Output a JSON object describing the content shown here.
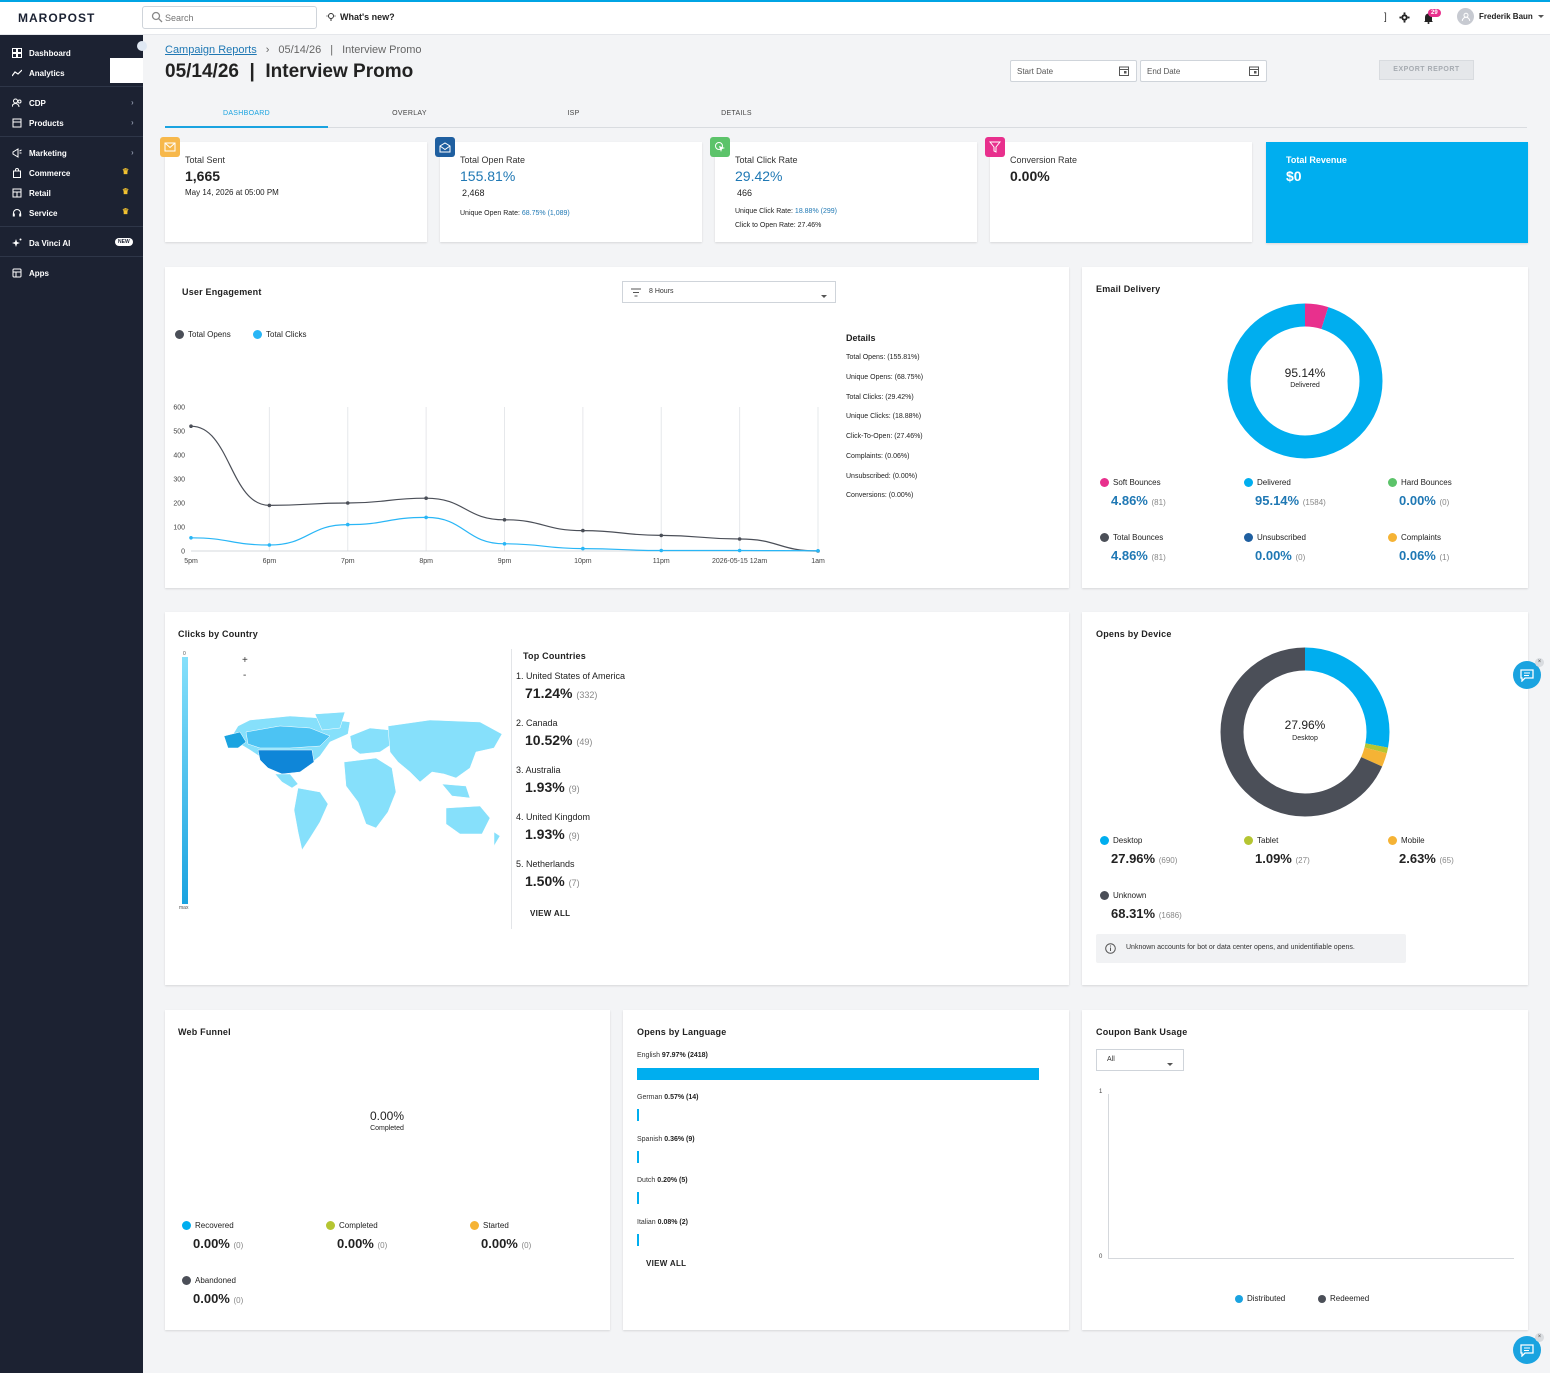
{
  "app": {
    "logo": "MAROPOST",
    "search_placeholder": "Search",
    "whats_new": "What's new?",
    "bracket": "]",
    "notif_count": "29",
    "user_name": "Frederik Baun",
    "accent": "#00a4e4"
  },
  "sidebar": {
    "items": [
      {
        "label": "Dashboard",
        "icon": "dashboard-icon"
      },
      {
        "label": "Analytics",
        "icon": "analytics-icon"
      },
      {
        "label": "CDP",
        "icon": "users-icon"
      },
      {
        "label": "Products",
        "icon": "box-icon"
      },
      {
        "label": "Marketing",
        "icon": "megaphone-icon"
      },
      {
        "label": "Commerce",
        "icon": "bag-icon"
      },
      {
        "label": "Retail",
        "icon": "store-icon"
      },
      {
        "label": "Service",
        "icon": "headset-icon"
      },
      {
        "label": "Da Vinci AI",
        "icon": "sparkle-icon"
      },
      {
        "label": "Apps",
        "icon": "apps-icon"
      }
    ],
    "new_badge": "NEW"
  },
  "breadcrumb": {
    "link": "Campaign Reports",
    "sep": "›",
    "date": "05/14/26",
    "pipe": "|",
    "name": "Interview Promo"
  },
  "page": {
    "title": "05/14/26  |  Interview Promo",
    "start_date_placeholder": "Start Date",
    "end_date_placeholder": "End Date",
    "export_label": "EXPORT REPORT"
  },
  "tabs": [
    "DASHBOARD",
    "OVERLAY",
    "ISP",
    "DETAILS"
  ],
  "stats": {
    "total_sent": {
      "label": "Total Sent",
      "value": "1,665",
      "sub": "May 14, 2026 at 05:00 PM"
    },
    "open_rate": {
      "label": "Total Open Rate",
      "value": "155.81%",
      "count": "2,468",
      "unique_label": "Unique Open Rate:",
      "unique_value": "68.75% (1,089)"
    },
    "click_rate": {
      "label": "Total Click Rate",
      "value": "29.42%",
      "count": "466",
      "unique_label": "Unique Click Rate:",
      "unique_value": "18.88% (299)",
      "cto": "Click to Open Rate: 27.46%"
    },
    "conversion": {
      "label": "Conversion Rate",
      "value": "0.00%"
    },
    "revenue": {
      "label": "Total Revenue",
      "value": "$0"
    }
  },
  "engagement": {
    "title": "User Engagement",
    "filter": "8 Hours",
    "legend_opens": "Total Opens",
    "legend_clicks": "Total Clicks",
    "details_title": "Details",
    "details": [
      "Total Opens: (155.81%)",
      "Unique Opens: (68.75%)",
      "Total Clicks: (29.42%)",
      "Unique Clicks: (18.88%)",
      "Click-To-Open: (27.46%)",
      "Complaints: (0.06%)",
      "Unsubscribed: (0.00%)",
      "Conversions: (0.00%)"
    ]
  },
  "chart_data": {
    "type": "line",
    "x": [
      "5pm",
      "6pm",
      "7pm",
      "8pm",
      "9pm",
      "10pm",
      "11pm",
      "2026-05-15 12am",
      "1am"
    ],
    "series": [
      {
        "name": "Total Opens",
        "values": [
          520,
          190,
          200,
          220,
          130,
          85,
          65,
          50,
          0
        ],
        "color": "#4b4f58"
      },
      {
        "name": "Total Clicks",
        "values": [
          55,
          25,
          110,
          140,
          30,
          10,
          2,
          2,
          1
        ],
        "color": "#29b6f6"
      }
    ],
    "yticks": [
      0,
      100,
      200,
      300,
      400,
      500,
      600
    ],
    "ylim": [
      0,
      600
    ],
    "xlabel": "",
    "ylabel": "",
    "grid": "vertical"
  },
  "delivery": {
    "title": "Email Delivery",
    "center_value": "95.14%",
    "center_label": "Delivered",
    "ring": {
      "delivered": 95.14,
      "soft_bounces": 4.86
    },
    "metrics": [
      {
        "label": "Soft Bounces",
        "value": "4.86%",
        "count": "(81)",
        "color": "#e8308d"
      },
      {
        "label": "Delivered",
        "value": "95.14%",
        "count": "(1584)",
        "color": "#00aeef"
      },
      {
        "label": "Hard Bounces",
        "value": "0.00%",
        "count": "(0)",
        "color": "#5cc36a"
      },
      {
        "label": "Total Bounces",
        "value": "4.86%",
        "count": "(81)",
        "color": "#4b4f58"
      },
      {
        "label": "Unsubscribed",
        "value": "0.00%",
        "count": "(0)",
        "color": "#1f5fa0"
      },
      {
        "label": "Complaints",
        "value": "0.06%",
        "count": "(1)",
        "color": "#f5b335"
      }
    ]
  },
  "country": {
    "title": "Clicks by Country",
    "scale_min": "0",
    "scale_max": "max",
    "zoom_in": "+",
    "zoom_out": "-",
    "top_title": "Top Countries",
    "items": [
      {
        "name": "1. United States of America",
        "value": "71.24%",
        "count": "(332)"
      },
      {
        "name": "2. Canada",
        "value": "10.52%",
        "count": "(49)"
      },
      {
        "name": "3. Australia",
        "value": "1.93%",
        "count": "(9)"
      },
      {
        "name": "4. United Kingdom",
        "value": "1.93%",
        "count": "(9)"
      },
      {
        "name": "5. Netherlands",
        "value": "1.50%",
        "count": "(7)"
      }
    ],
    "view_all": "VIEW ALL"
  },
  "device": {
    "title": "Opens by Device",
    "center_value": "27.96%",
    "center_label": "Desktop",
    "ring": {
      "desktop": 27.96,
      "tablet": 1.09,
      "mobile": 2.63,
      "unknown": 68.31
    },
    "metrics": [
      {
        "label": "Desktop",
        "value": "27.96%",
        "count": "(690)",
        "color": "#00aeef"
      },
      {
        "label": "Tablet",
        "value": "1.09%",
        "count": "(27)",
        "color": "#b5c532"
      },
      {
        "label": "Mobile",
        "value": "2.63%",
        "count": "(65)",
        "color": "#f5b335"
      },
      {
        "label": "Unknown",
        "value": "68.31%",
        "count": "(1686)",
        "color": "#4b4f58"
      }
    ],
    "info": "Unknown accounts for bot or data center opens, and unidentifiable opens."
  },
  "funnel": {
    "title": "Web Funnel",
    "center_value": "0.00%",
    "center_label": "Completed",
    "metrics": [
      {
        "label": "Recovered",
        "value": "0.00%",
        "count": "(0)",
        "color": "#00aeef"
      },
      {
        "label": "Completed",
        "value": "0.00%",
        "count": "(0)",
        "color": "#b5c532"
      },
      {
        "label": "Started",
        "value": "0.00%",
        "count": "(0)",
        "color": "#f5b335"
      },
      {
        "label": "Abandoned",
        "value": "0.00%",
        "count": "(0)",
        "color": "#4b4f58"
      }
    ]
  },
  "language": {
    "title": "Opens by Language",
    "items": [
      {
        "name": "English",
        "stat": "97.97% (2418)",
        "pct": 97.97
      },
      {
        "name": "German",
        "stat": "0.57% (14)",
        "pct": 0.57
      },
      {
        "name": "Spanish",
        "stat": "0.36% (9)",
        "pct": 0.36
      },
      {
        "name": "Dutch",
        "stat": "0.20% (5)",
        "pct": 0.2
      },
      {
        "name": "Italian",
        "stat": "0.08% (2)",
        "pct": 0.08
      }
    ],
    "view_all": "VIEW ALL"
  },
  "coupon": {
    "title": "Coupon Bank Usage",
    "filter": "All",
    "y_top": "1",
    "y_bottom": "0",
    "legend_distributed": "Distributed",
    "legend_redeemed": "Redeemed"
  }
}
